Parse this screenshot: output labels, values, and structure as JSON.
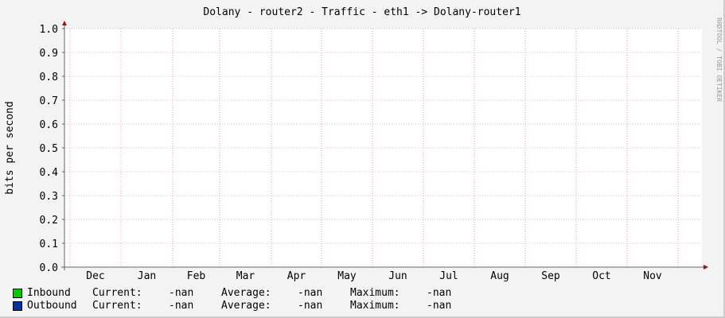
{
  "chart_data": {
    "type": "line",
    "title": "Dolany - router2 - Traffic - eth1 -> Dolany-router1",
    "ylabel": "bits per second",
    "xlabel": "",
    "ylim": [
      0,
      1.0
    ],
    "y_ticks": [
      "0.0",
      "0.1",
      "0.2",
      "0.3",
      "0.4",
      "0.5",
      "0.6",
      "0.7",
      "0.8",
      "0.9",
      "1.0"
    ],
    "x_ticks": [
      "Dec",
      "Jan",
      "Feb",
      "Mar",
      "Apr",
      "May",
      "Jun",
      "Jul",
      "Aug",
      "Sep",
      "Oct",
      "Nov"
    ],
    "grid": true,
    "series": [
      {
        "name": "Inbound",
        "color": "#00cc00",
        "values": []
      },
      {
        "name": "Outbound",
        "color": "#0033a0",
        "values": []
      }
    ],
    "watermark": "RRDTOOL / TOBI OETIKER"
  },
  "legend": [
    {
      "name": "Inbound",
      "color": "#00cc00",
      "current_label": "Current:",
      "current": "-nan",
      "average_label": "Average:",
      "average": "-nan",
      "maximum_label": "Maximum:",
      "maximum": "-nan"
    },
    {
      "name": "Outbound",
      "color": "#0033a0",
      "current_label": "Current:",
      "current": "-nan",
      "average_label": "Average:",
      "average": "-nan",
      "maximum_label": "Maximum:",
      "maximum": "-nan"
    }
  ]
}
